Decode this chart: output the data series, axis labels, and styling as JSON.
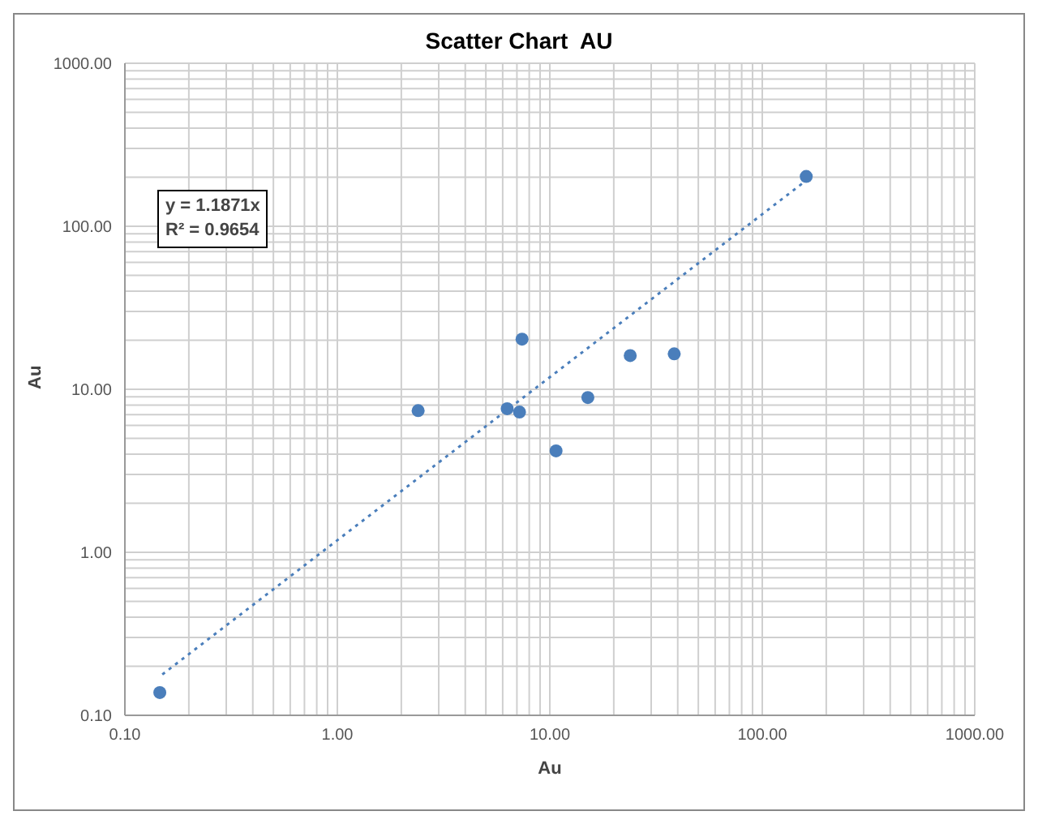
{
  "chart_data": {
    "type": "scatter",
    "title": "Scatter Chart  AU",
    "xlabel": "Au",
    "ylabel": "Au",
    "log": "xy",
    "grid": true,
    "legend": false,
    "marker": "circle",
    "xlim": [
      0.1,
      1000
    ],
    "ylim": [
      0.1,
      1000
    ],
    "xticks": [
      {
        "value": 0.1,
        "label": "0.10"
      },
      {
        "value": 0.2,
        "label": null
      },
      {
        "value": 0.3,
        "label": null
      },
      {
        "value": 0.4,
        "label": null
      },
      {
        "value": 0.5,
        "label": null
      },
      {
        "value": 0.6,
        "label": null
      },
      {
        "value": 0.7,
        "label": null
      },
      {
        "value": 0.8,
        "label": null
      },
      {
        "value": 0.9,
        "label": null
      },
      {
        "value": 1,
        "label": "1.00"
      },
      {
        "value": 2,
        "label": null
      },
      {
        "value": 3,
        "label": null
      },
      {
        "value": 4,
        "label": null
      },
      {
        "value": 5,
        "label": null
      },
      {
        "value": 6,
        "label": null
      },
      {
        "value": 7,
        "label": null
      },
      {
        "value": 8,
        "label": null
      },
      {
        "value": 9,
        "label": null
      },
      {
        "value": 10,
        "label": "10.00"
      },
      {
        "value": 20,
        "label": null
      },
      {
        "value": 30,
        "label": null
      },
      {
        "value": 40,
        "label": null
      },
      {
        "value": 50,
        "label": null
      },
      {
        "value": 60,
        "label": null
      },
      {
        "value": 70,
        "label": null
      },
      {
        "value": 80,
        "label": null
      },
      {
        "value": 90,
        "label": null
      },
      {
        "value": 100,
        "label": "100.00"
      },
      {
        "value": 200,
        "label": null
      },
      {
        "value": 300,
        "label": null
      },
      {
        "value": 400,
        "label": null
      },
      {
        "value": 500,
        "label": null
      },
      {
        "value": 600,
        "label": null
      },
      {
        "value": 700,
        "label": null
      },
      {
        "value": 800,
        "label": null
      },
      {
        "value": 900,
        "label": null
      },
      {
        "value": 1000,
        "label": "1000.00"
      }
    ],
    "yticks": [
      {
        "value": 0.1,
        "label": "0.10"
      },
      {
        "value": 0.2,
        "label": null
      },
      {
        "value": 0.3,
        "label": null
      },
      {
        "value": 0.4,
        "label": null
      },
      {
        "value": 0.5,
        "label": null
      },
      {
        "value": 0.6,
        "label": null
      },
      {
        "value": 0.7,
        "label": null
      },
      {
        "value": 0.8,
        "label": null
      },
      {
        "value": 0.9,
        "label": null
      },
      {
        "value": 1,
        "label": "1.00"
      },
      {
        "value": 2,
        "label": null
      },
      {
        "value": 3,
        "label": null
      },
      {
        "value": 4,
        "label": null
      },
      {
        "value": 5,
        "label": null
      },
      {
        "value": 6,
        "label": null
      },
      {
        "value": 7,
        "label": null
      },
      {
        "value": 8,
        "label": null
      },
      {
        "value": 9,
        "label": null
      },
      {
        "value": 10,
        "label": "10.00"
      },
      {
        "value": 20,
        "label": null
      },
      {
        "value": 30,
        "label": null
      },
      {
        "value": 40,
        "label": null
      },
      {
        "value": 50,
        "label": null
      },
      {
        "value": 60,
        "label": null
      },
      {
        "value": 70,
        "label": null
      },
      {
        "value": 80,
        "label": null
      },
      {
        "value": 90,
        "label": null
      },
      {
        "value": 100,
        "label": "100.00"
      },
      {
        "value": 200,
        "label": null
      },
      {
        "value": 300,
        "label": null
      },
      {
        "value": 400,
        "label": null
      },
      {
        "value": 500,
        "label": null
      },
      {
        "value": 600,
        "label": null
      },
      {
        "value": 700,
        "label": null
      },
      {
        "value": 800,
        "label": null
      },
      {
        "value": 900,
        "label": null
      },
      {
        "value": 1000,
        "label": "1000.00"
      }
    ],
    "series": [
      {
        "color": "#4a7ebb",
        "x": [
          0.146,
          2.4,
          6.3,
          7.2,
          7.4,
          10.7,
          15.1,
          23.9,
          38.5,
          161
        ],
        "values": [
          0.138,
          7.4,
          7.6,
          7.25,
          20.3,
          4.19,
          8.9,
          16.1,
          16.5,
          202
        ]
      },
      {
        "type": "line",
        "color": "#4a7ebb",
        "marker": "none",
        "line_style": "dotted",
        "x": [
          0.15,
          161
        ],
        "values": [
          0.178,
          191
        ]
      }
    ],
    "annotations": [
      "y = 1.1871x",
      "R² = 0.9654"
    ]
  }
}
